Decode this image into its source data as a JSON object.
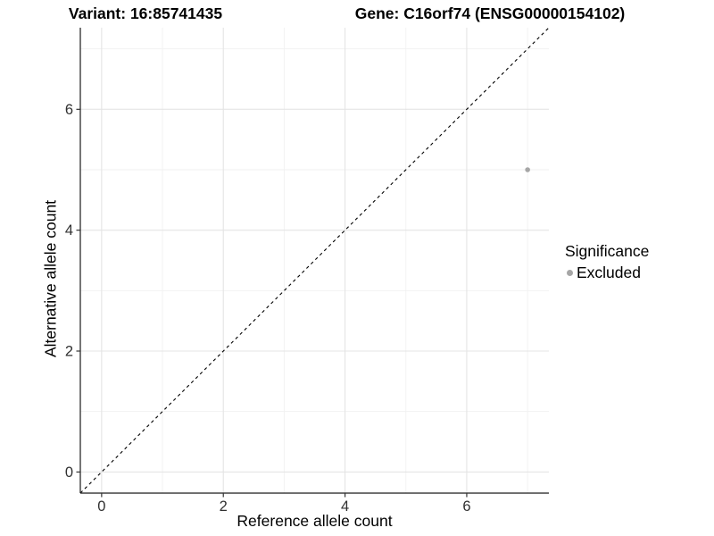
{
  "header": {
    "variant_title": "Variant: 16:85741435",
    "gene_title": "Gene: C16orf74 (ENSG00000154102)"
  },
  "chart_data": {
    "type": "scatter",
    "xlabel": "Reference allele count",
    "ylabel": "Alternative allele count",
    "xlim": [
      -0.35,
      7.35
    ],
    "ylim": [
      -0.35,
      7.35
    ],
    "x_major_ticks": [
      0,
      2,
      4,
      6
    ],
    "y_major_ticks": [
      0,
      2,
      4,
      6
    ],
    "x_minor_gridlines": [
      1,
      3,
      5,
      7
    ],
    "y_minor_gridlines": [
      1,
      3,
      5,
      7
    ],
    "grid": true,
    "reference_line": {
      "type": "identity",
      "style": "dashed",
      "from": [
        -0.35,
        -0.35
      ],
      "to": [
        7.35,
        7.35
      ],
      "color": "#000000"
    },
    "series": [
      {
        "name": "Excluded",
        "color": "#a6a6a6",
        "points": [
          {
            "x": 7,
            "y": 5
          }
        ]
      }
    ],
    "legend": {
      "title": "Significance",
      "position": "right",
      "items": [
        {
          "label": "Excluded",
          "color": "#a6a6a6",
          "marker": "circle"
        }
      ]
    },
    "colors": {
      "grid_major": "#e4e4e4",
      "grid_minor": "#f1f1f1",
      "axis_line": "#1a1a1a",
      "tick_mark": "#333333",
      "tick_label": "#303030",
      "point": "#a6a6a6"
    }
  }
}
